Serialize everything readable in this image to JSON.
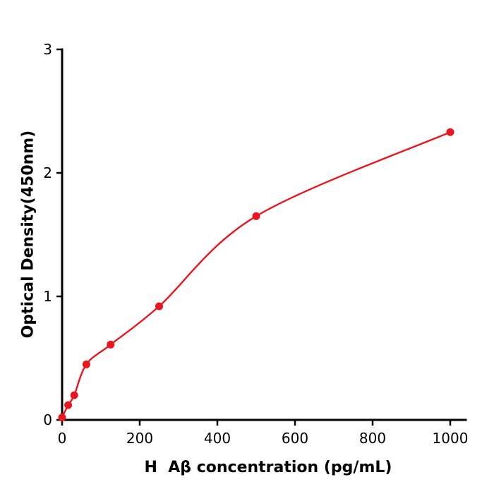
{
  "chart_data": {
    "type": "scatter",
    "title": "",
    "xlabel": "H  Aβ concentration (pg/mL)",
    "ylabel": "Optical Density(450nm)",
    "x": [
      0,
      15.6,
      31.25,
      62.5,
      125,
      250,
      500,
      1000
    ],
    "y": [
      0.02,
      0.12,
      0.2,
      0.45,
      0.61,
      0.92,
      1.65,
      2.33
    ],
    "x_ticks": [
      0,
      200,
      400,
      600,
      800,
      1000
    ],
    "y_ticks": [
      0,
      1,
      2,
      3
    ],
    "xlim": [
      0,
      1040
    ],
    "ylim": [
      0,
      3
    ],
    "grid": false,
    "legend": "none",
    "line_style": "smooth-fit-curve",
    "point_color": "#e8171f",
    "line_color": "#e8171f",
    "axis_color": "#000000",
    "background_color": "#ffffff"
  }
}
